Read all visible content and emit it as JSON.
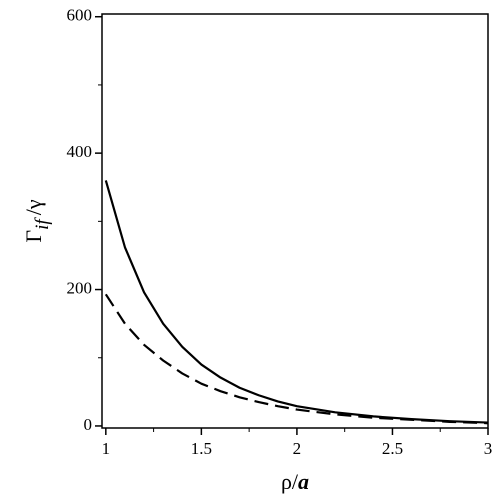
{
  "chart_data": {
    "type": "line",
    "xlabel": {
      "text": "ρ/",
      "italic": "a"
    },
    "ylabel": {
      "base": "Γ",
      "sub": "if",
      "rest": "/γ"
    },
    "x": [
      1,
      1.1,
      1.2,
      1.3,
      1.4,
      1.5,
      1.6,
      1.7,
      1.8,
      1.9,
      2,
      2.2,
      2.4,
      2.6,
      2.8,
      3
    ],
    "series": [
      {
        "color": "#000000",
        "dashed": false,
        "values": [
          360,
          262,
          196,
          150,
          116,
          90,
          71,
          56,
          45,
          36,
          29,
          20,
          14,
          10,
          7,
          5
        ]
      },
      {
        "color": "#000000",
        "dashed": true,
        "values": [
          193,
          150,
          119,
          96,
          77,
          62,
          51,
          42,
          35,
          29,
          24,
          17,
          12,
          9,
          6,
          4
        ]
      }
    ],
    "xlim": [
      0.98,
      3.0
    ],
    "ylim": [
      -3,
      604
    ],
    "xticks": [
      1,
      1.5,
      2,
      2.5,
      3
    ],
    "yticks": [
      0,
      200,
      400,
      600
    ],
    "xminorticks": [
      1.25,
      1.75,
      2.25,
      2.75
    ],
    "yminorticks": [
      100,
      300,
      500
    ],
    "grid": false
  }
}
